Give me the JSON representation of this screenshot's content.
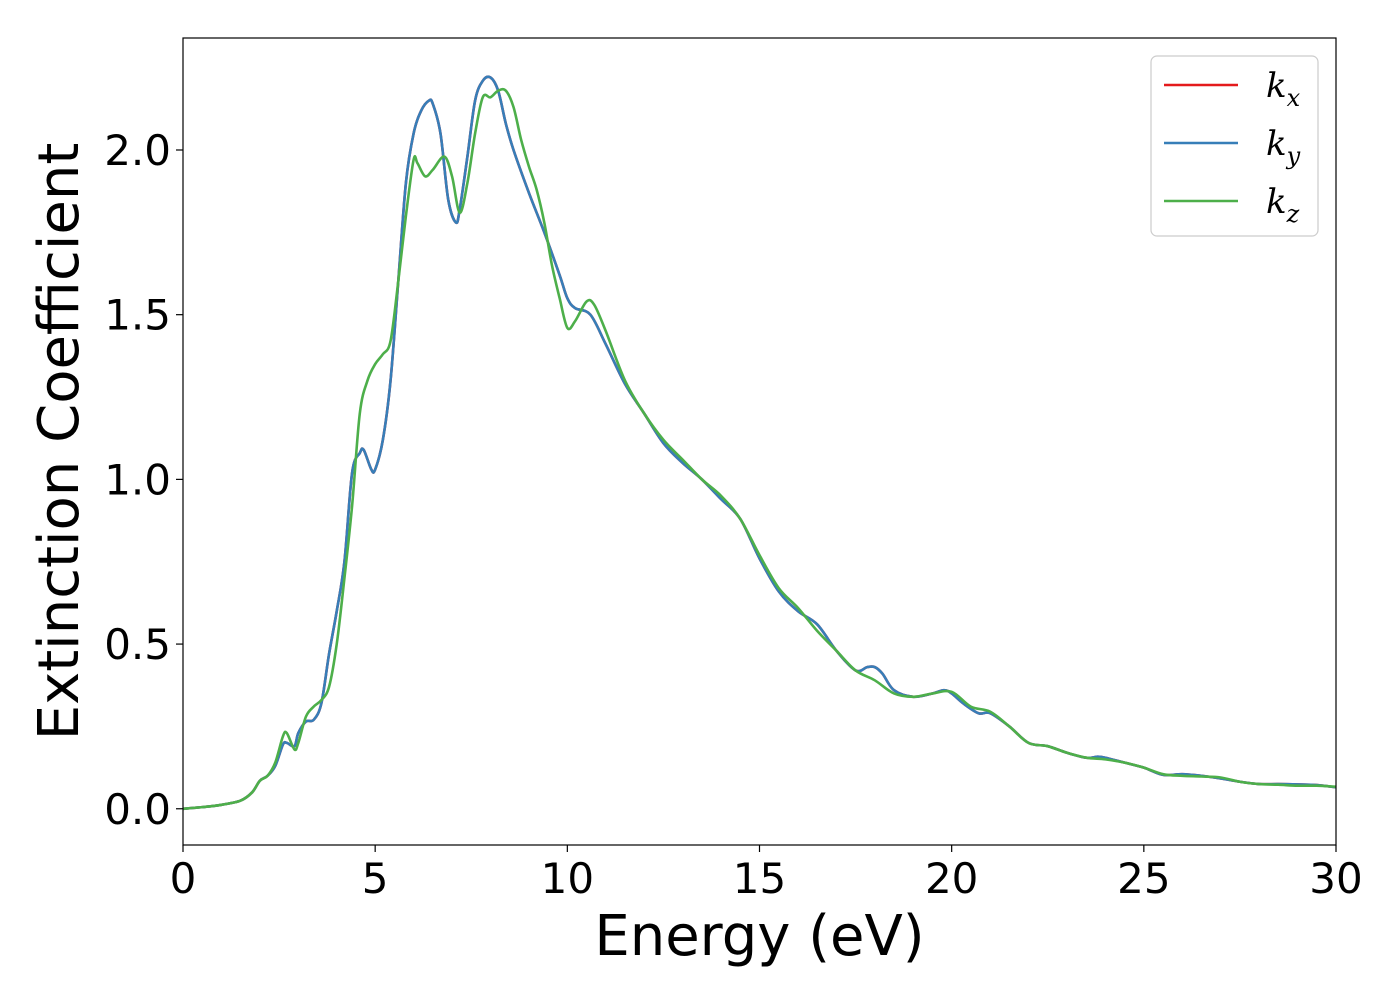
{
  "chart_data": {
    "type": "line",
    "title": "",
    "xlabel": "Energy (eV)",
    "ylabel": "Extinction Coefficient",
    "xlim": [
      0,
      30
    ],
    "ylim": [
      -0.11,
      2.34
    ],
    "xticks": [
      0,
      5,
      10,
      15,
      20,
      25,
      30
    ],
    "xtick_labels": [
      "0",
      "5",
      "10",
      "15",
      "20",
      "25",
      "30"
    ],
    "yticks": [
      0.0,
      0.5,
      1.0,
      1.5,
      2.0
    ],
    "ytick_labels": [
      "0.0",
      "0.5",
      "1.0",
      "1.5",
      "2.0"
    ],
    "grid": false,
    "legend_position": "top-right",
    "series": [
      {
        "name": "k_x",
        "legend_base": "k",
        "legend_sub": "x",
        "color": "#e41a1c",
        "x": [
          0,
          0.5,
          1,
          1.5,
          1.8,
          2,
          2.2,
          2.4,
          2.6,
          2.7,
          2.9,
          3,
          3.2,
          3.4,
          3.6,
          3.8,
          4,
          4.2,
          4.4,
          4.6,
          4.7,
          4.9,
          5,
          5.2,
          5.4,
          5.6,
          5.8,
          6,
          6.2,
          6.4,
          6.5,
          6.7,
          6.9,
          7.1,
          7.2,
          7.4,
          7.6,
          7.8,
          8,
          8.2,
          8.4,
          8.6,
          9,
          9.4,
          9.8,
          10,
          10.2,
          10.6,
          11,
          11.5,
          12,
          12.5,
          13,
          13.5,
          14,
          14.5,
          15,
          15.5,
          16,
          16.5,
          17,
          17.5,
          17.8,
          18,
          18.2,
          18.5,
          19,
          19.5,
          19.8,
          20,
          20.3,
          20.7,
          21,
          21.5,
          22,
          22.5,
          23,
          23.5,
          23.8,
          24,
          24.5,
          25,
          25.5,
          26,
          26.5,
          27,
          27.5,
          28,
          28.5,
          29,
          29.5,
          30
        ],
        "y": [
          0,
          0.005,
          0.012,
          0.025,
          0.05,
          0.085,
          0.1,
          0.13,
          0.195,
          0.2,
          0.19,
          0.23,
          0.265,
          0.27,
          0.32,
          0.47,
          0.6,
          0.75,
          1.02,
          1.08,
          1.09,
          1.03,
          1.03,
          1.12,
          1.3,
          1.6,
          1.9,
          2.05,
          2.12,
          2.15,
          2.14,
          2.05,
          1.85,
          1.78,
          1.82,
          1.98,
          2.15,
          2.21,
          2.22,
          2.18,
          2.08,
          2.0,
          1.87,
          1.75,
          1.62,
          1.55,
          1.52,
          1.5,
          1.41,
          1.29,
          1.2,
          1.11,
          1.05,
          1.0,
          0.94,
          0.88,
          0.76,
          0.66,
          0.6,
          0.56,
          0.48,
          0.42,
          0.43,
          0.43,
          0.41,
          0.36,
          0.34,
          0.35,
          0.36,
          0.35,
          0.32,
          0.29,
          0.29,
          0.25,
          0.2,
          0.19,
          0.17,
          0.155,
          0.158,
          0.155,
          0.14,
          0.125,
          0.103,
          0.105,
          0.1,
          0.092,
          0.082,
          0.075,
          0.075,
          0.074,
          0.072,
          0.065
        ]
      },
      {
        "name": "k_y",
        "legend_base": "k",
        "legend_sub": "y",
        "color": "#377eb8",
        "x": [
          0,
          0.5,
          1,
          1.5,
          1.8,
          2,
          2.2,
          2.4,
          2.6,
          2.7,
          2.9,
          3,
          3.2,
          3.4,
          3.6,
          3.8,
          4,
          4.2,
          4.4,
          4.6,
          4.7,
          4.9,
          5,
          5.2,
          5.4,
          5.6,
          5.8,
          6,
          6.2,
          6.4,
          6.5,
          6.7,
          6.9,
          7.1,
          7.2,
          7.4,
          7.6,
          7.8,
          8,
          8.2,
          8.4,
          8.6,
          9,
          9.4,
          9.8,
          10,
          10.2,
          10.6,
          11,
          11.5,
          12,
          12.5,
          13,
          13.5,
          14,
          14.5,
          15,
          15.5,
          16,
          16.5,
          17,
          17.5,
          17.8,
          18,
          18.2,
          18.5,
          19,
          19.5,
          19.8,
          20,
          20.3,
          20.7,
          21,
          21.5,
          22,
          22.5,
          23,
          23.5,
          23.8,
          24,
          24.5,
          25,
          25.5,
          26,
          26.5,
          27,
          27.5,
          28,
          28.5,
          29,
          29.5,
          30
        ],
        "y": [
          0,
          0.005,
          0.012,
          0.025,
          0.05,
          0.085,
          0.1,
          0.13,
          0.195,
          0.2,
          0.19,
          0.23,
          0.265,
          0.27,
          0.32,
          0.47,
          0.6,
          0.75,
          1.02,
          1.08,
          1.09,
          1.03,
          1.03,
          1.12,
          1.3,
          1.6,
          1.9,
          2.05,
          2.12,
          2.15,
          2.14,
          2.05,
          1.85,
          1.78,
          1.82,
          1.98,
          2.15,
          2.21,
          2.22,
          2.18,
          2.08,
          2.0,
          1.87,
          1.75,
          1.62,
          1.55,
          1.52,
          1.5,
          1.41,
          1.29,
          1.2,
          1.11,
          1.05,
          1.0,
          0.94,
          0.88,
          0.76,
          0.66,
          0.6,
          0.56,
          0.48,
          0.42,
          0.43,
          0.43,
          0.41,
          0.36,
          0.34,
          0.35,
          0.36,
          0.35,
          0.32,
          0.29,
          0.29,
          0.25,
          0.2,
          0.19,
          0.17,
          0.155,
          0.158,
          0.155,
          0.14,
          0.125,
          0.103,
          0.105,
          0.1,
          0.092,
          0.082,
          0.075,
          0.075,
          0.074,
          0.072,
          0.065
        ]
      },
      {
        "name": "k_z",
        "legend_base": "k",
        "legend_sub": "z",
        "color": "#4daf4a",
        "x": [
          0,
          0.5,
          1,
          1.5,
          1.8,
          2,
          2.2,
          2.4,
          2.6,
          2.7,
          2.9,
          3,
          3.2,
          3.4,
          3.6,
          3.8,
          4,
          4.2,
          4.4,
          4.6,
          4.8,
          5,
          5.2,
          5.4,
          5.6,
          5.8,
          6,
          6.1,
          6.3,
          6.5,
          6.8,
          7,
          7.2,
          7.4,
          7.6,
          7.8,
          8,
          8.2,
          8.4,
          8.6,
          8.8,
          9,
          9.2,
          9.4,
          9.6,
          9.8,
          10,
          10.2,
          10.5,
          10.7,
          11,
          11.5,
          12,
          12.5,
          13,
          13.5,
          14,
          14.5,
          15,
          15.5,
          16,
          16.5,
          17,
          17.5,
          18,
          18.5,
          19,
          19.5,
          20,
          20.5,
          21,
          21.5,
          22,
          22.5,
          23,
          23.5,
          24,
          24.5,
          25,
          25.5,
          26,
          26.5,
          27,
          27.5,
          28,
          28.5,
          29,
          29.5,
          30
        ],
        "y": [
          0,
          0.005,
          0.012,
          0.025,
          0.05,
          0.085,
          0.1,
          0.14,
          0.22,
          0.23,
          0.18,
          0.2,
          0.28,
          0.31,
          0.33,
          0.37,
          0.5,
          0.7,
          0.92,
          1.2,
          1.3,
          1.35,
          1.38,
          1.42,
          1.6,
          1.8,
          1.97,
          1.96,
          1.92,
          1.94,
          1.98,
          1.92,
          1.81,
          1.9,
          2.05,
          2.16,
          2.16,
          2.18,
          2.18,
          2.13,
          2.03,
          1.95,
          1.88,
          1.78,
          1.65,
          1.55,
          1.46,
          1.48,
          1.54,
          1.53,
          1.45,
          1.3,
          1.2,
          1.12,
          1.06,
          1.0,
          0.95,
          0.88,
          0.77,
          0.67,
          0.61,
          0.54,
          0.48,
          0.42,
          0.39,
          0.35,
          0.34,
          0.35,
          0.355,
          0.31,
          0.295,
          0.25,
          0.2,
          0.19,
          0.17,
          0.155,
          0.15,
          0.14,
          0.125,
          0.105,
          0.1,
          0.098,
          0.095,
          0.082,
          0.075,
          0.073,
          0.07,
          0.07,
          0.067
        ]
      }
    ]
  }
}
